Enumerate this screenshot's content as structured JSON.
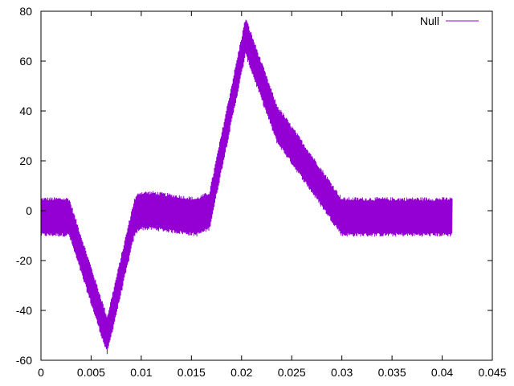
{
  "chart_data": {
    "type": "line",
    "title": "",
    "xlabel": "",
    "ylabel": "",
    "xlim": [
      0,
      0.045
    ],
    "ylim": [
      -60,
      80
    ],
    "xticks": [
      0,
      0.005,
      0.01,
      0.015,
      0.02,
      0.025,
      0.03,
      0.035,
      0.04,
      0.045
    ],
    "xtick_labels": [
      "0",
      "0.005",
      "0.01",
      "0.015",
      "0.02",
      "0.025",
      "0.03",
      "0.035",
      "0.04",
      "0.045"
    ],
    "yticks": [
      -60,
      -40,
      -20,
      0,
      20,
      40,
      60,
      80
    ],
    "ytick_labels": [
      "-60",
      "-40",
      "-20",
      "0",
      "20",
      "40",
      "60",
      "80"
    ],
    "grid": false,
    "legend": {
      "position": "top-right"
    },
    "series": [
      {
        "name": "Null",
        "color": "#9400d3",
        "noise_band": 14.4,
        "envelope_x": [
          0,
          0.0028,
          0.0066,
          0.0093,
          0.0098,
          0.0112,
          0.0155,
          0.0168,
          0.0204,
          0.0235,
          0.03,
          0.041
        ],
        "envelope_center": [
          -2.5,
          -2.5,
          -50,
          -3,
          0,
          0,
          -2.5,
          0,
          70,
          35,
          -2.5,
          -2.5
        ]
      }
    ]
  }
}
